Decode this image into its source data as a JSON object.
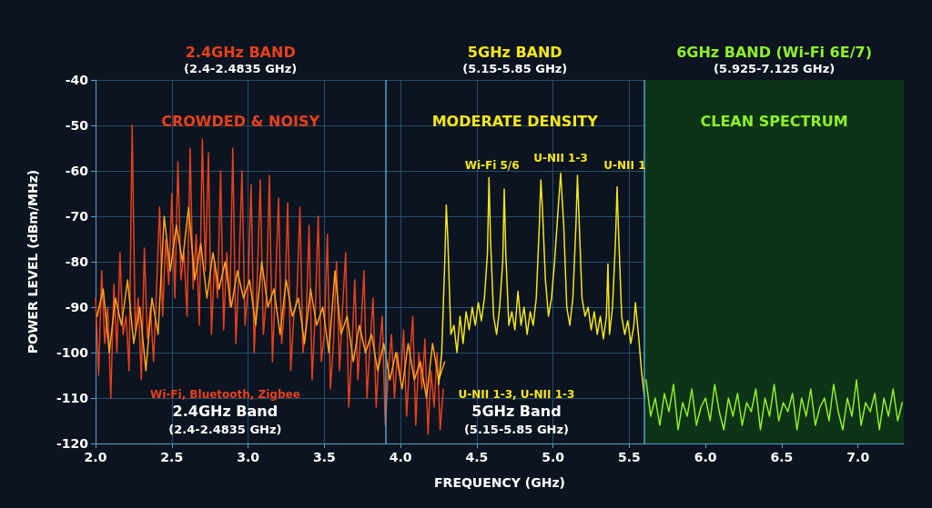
{
  "chart_data": {
    "type": "line",
    "xlabel": "FREQUENCY (GHz)",
    "ylabel": "POWER LEVEL (dBm/MHz)",
    "xlim": [
      2.0,
      7.3
    ],
    "xticks": [
      {
        "value": 2,
        "label": "2.0"
      },
      2.5,
      {
        "value": 3,
        "label": "3.0"
      },
      3.5,
      {
        "value": 4,
        "label": "4.0"
      },
      4.5,
      {
        "value": 5,
        "label": "5.0"
      },
      5.5,
      {
        "value": 6,
        "label": "6.0"
      },
      6.5,
      {
        "value": 7,
        "label": "7.0"
      }
    ],
    "ylim": [
      -120,
      -40
    ],
    "yticks": [
      -120,
      -110,
      -100,
      -90,
      -80,
      -70,
      -60,
      -50,
      -40
    ],
    "grid": true,
    "marker": "none",
    "series": [
      {
        "color": "#e8401c",
        "x": [
          2.0,
          2.02,
          2.04,
          2.06,
          2.08,
          2.1,
          2.12,
          2.14,
          2.16,
          2.18,
          2.2,
          2.22,
          2.24,
          2.26,
          2.28,
          2.3,
          2.32,
          2.34,
          2.36,
          2.38,
          2.4,
          2.42,
          2.44,
          2.46,
          2.48,
          2.5,
          2.52,
          2.54,
          2.56,
          2.58,
          2.6,
          2.62,
          2.64,
          2.66,
          2.68,
          2.7,
          2.72,
          2.74,
          2.76,
          2.78,
          2.8,
          2.82,
          2.84,
          2.86,
          2.88,
          2.9,
          2.92,
          2.94,
          2.96,
          2.98,
          3.0,
          3.02,
          3.04,
          3.06,
          3.08,
          3.1,
          3.12,
          3.14,
          3.16,
          3.18,
          3.2,
          3.22,
          3.24,
          3.26,
          3.28,
          3.3,
          3.32,
          3.34,
          3.36,
          3.38,
          3.4,
          3.42,
          3.44,
          3.46,
          3.48,
          3.5,
          3.52,
          3.54,
          3.56,
          3.58,
          3.6,
          3.62,
          3.64,
          3.66,
          3.68,
          3.7,
          3.72,
          3.74,
          3.76,
          3.78,
          3.8,
          3.82,
          3.84,
          3.86,
          3.88,
          3.9,
          3.92,
          3.94,
          3.96,
          3.98,
          4.0,
          4.02,
          4.04,
          4.06,
          4.08,
          4.1,
          4.12,
          4.14,
          4.16,
          4.18,
          4.2,
          4.22,
          4.24,
          4.26,
          4.28
        ],
        "values": [
          -88,
          -105,
          -82,
          -98,
          -90,
          -110,
          -85,
          -100,
          -78,
          -96,
          -92,
          -104,
          -50,
          -95,
          -88,
          -106,
          -77,
          -97,
          -90,
          -102,
          -86,
          -68,
          -92,
          -75,
          -85,
          -65,
          -88,
          -58,
          -84,
          -78,
          -92,
          -55,
          -86,
          -74,
          -94,
          -53,
          -82,
          -56,
          -96,
          -80,
          -88,
          -60,
          -95,
          -78,
          -90,
          -55,
          -98,
          -82,
          -60,
          -94,
          -86,
          -63,
          -100,
          -84,
          -62,
          -96,
          -88,
          -61,
          -102,
          -85,
          -66,
          -98,
          -90,
          -67,
          -104,
          -92,
          -88,
          -68,
          -100,
          -94,
          -72,
          -106,
          -92,
          -70,
          -102,
          -96,
          -74,
          -108,
          -98,
          -80,
          -104,
          -90,
          -78,
          -112,
          -100,
          -84,
          -106,
          -95,
          -82,
          -110,
          -98,
          -88,
          -112,
          -100,
          -92,
          -116,
          -104,
          -96,
          -110,
          -100,
          -106,
          -95,
          -114,
          -102,
          -92,
          -116,
          -100,
          -108,
          -97,
          -118,
          -104,
          -112,
          -100,
          -117,
          -108
        ]
      },
      {
        "color": "#ffa41c",
        "x": [
          2.01,
          2.05,
          2.09,
          2.13,
          2.17,
          2.21,
          2.25,
          2.29,
          2.33,
          2.37,
          2.41,
          2.45,
          2.49,
          2.53,
          2.57,
          2.61,
          2.65,
          2.69,
          2.73,
          2.77,
          2.81,
          2.85,
          2.89,
          2.93,
          2.97,
          3.01,
          3.05,
          3.09,
          3.13,
          3.17,
          3.21,
          3.25,
          3.29,
          3.33,
          3.37,
          3.41,
          3.45,
          3.49,
          3.53,
          3.57,
          3.61,
          3.65,
          3.69,
          3.73,
          3.77,
          3.81,
          3.85,
          3.89,
          3.93,
          3.97,
          4.01,
          4.05,
          4.09,
          4.13,
          4.17,
          4.21,
          4.25,
          4.29
        ],
        "values": [
          -92,
          -86,
          -100,
          -88,
          -94,
          -84,
          -98,
          -90,
          -104,
          -88,
          -96,
          -70,
          -82,
          -72,
          -80,
          -68,
          -84,
          -76,
          -88,
          -78,
          -86,
          -80,
          -90,
          -82,
          -88,
          -84,
          -94,
          -80,
          -90,
          -86,
          -96,
          -84,
          -92,
          -88,
          -98,
          -86,
          -94,
          -90,
          -100,
          -82,
          -96,
          -92,
          -102,
          -94,
          -100,
          -96,
          -104,
          -98,
          -106,
          -100,
          -108,
          -98,
          -106,
          -102,
          -110,
          -98,
          -106,
          -102
        ]
      },
      {
        "color": "#f5e61a",
        "x": [
          4.25,
          4.27,
          4.29,
          4.3,
          4.31,
          4.33,
          4.35,
          4.37,
          4.39,
          4.41,
          4.43,
          4.45,
          4.47,
          4.49,
          4.51,
          4.53,
          4.55,
          4.57,
          4.58,
          4.59,
          4.61,
          4.63,
          4.65,
          4.67,
          4.68,
          4.69,
          4.71,
          4.73,
          4.75,
          4.77,
          4.79,
          4.81,
          4.83,
          4.85,
          4.87,
          4.89,
          4.91,
          4.92,
          4.93,
          4.95,
          4.97,
          4.99,
          5.01,
          5.03,
          5.05,
          5.07,
          5.09,
          5.11,
          5.13,
          5.15,
          5.16,
          5.17,
          5.19,
          5.21,
          5.23,
          5.25,
          5.27,
          5.29,
          5.31,
          5.33,
          5.35,
          5.36,
          5.37,
          5.39,
          5.41,
          5.42,
          5.43,
          5.45,
          5.47,
          5.49,
          5.51,
          5.53,
          5.54,
          5.56,
          5.58,
          5.6
        ],
        "values": [
          -107,
          -100,
          -80,
          -67.5,
          -75,
          -96,
          -94,
          -100,
          -92,
          -98,
          -91,
          -95,
          -90,
          -94,
          -89,
          -93,
          -88,
          -78,
          -61.5,
          -75,
          -92,
          -96,
          -90,
          -80,
          -64,
          -78,
          -94,
          -91,
          -95,
          -86.5,
          -94,
          -90,
          -96,
          -91,
          -94,
          -88,
          -72,
          -62,
          -68,
          -84,
          -92,
          -88,
          -80,
          -70,
          -60.5,
          -72,
          -90,
          -94,
          -88,
          -72,
          -61,
          -70,
          -88,
          -92,
          -90,
          -95,
          -91,
          -96,
          -92,
          -97,
          -92,
          -80.5,
          -96,
          -90,
          -75,
          -63.5,
          -74,
          -92,
          -96,
          -93,
          -98,
          -94,
          -89,
          -96,
          -104,
          -110
        ]
      },
      {
        "color": "#8ef02a",
        "x": [
          5.61,
          5.64,
          5.67,
          5.7,
          5.73,
          5.76,
          5.79,
          5.82,
          5.85,
          5.88,
          5.91,
          5.94,
          5.97,
          6.0,
          6.03,
          6.06,
          6.09,
          6.12,
          6.15,
          6.18,
          6.21,
          6.24,
          6.27,
          6.3,
          6.33,
          6.36,
          6.39,
          6.42,
          6.45,
          6.48,
          6.51,
          6.54,
          6.57,
          6.6,
          6.63,
          6.66,
          6.69,
          6.72,
          6.75,
          6.78,
          6.81,
          6.84,
          6.87,
          6.9,
          6.93,
          6.96,
          6.99,
          7.02,
          7.05,
          7.08,
          7.11,
          7.14,
          7.17,
          7.2,
          7.23,
          7.26,
          7.29
        ],
        "values": [
          -106,
          -114,
          -110,
          -116,
          -109,
          -113,
          -107,
          -117,
          -111,
          -114,
          -108,
          -116,
          -112,
          -110,
          -115,
          -107,
          -113,
          -117,
          -110,
          -114,
          -109,
          -116,
          -111,
          -113,
          -108,
          -117,
          -110,
          -114,
          -107,
          -115,
          -111,
          -113,
          -109,
          -117,
          -110,
          -114,
          -108,
          -116,
          -112,
          -110,
          -115,
          -107,
          -113,
          -117,
          -110,
          -114,
          -106,
          -116,
          -111,
          -113,
          -109,
          -117,
          -110,
          -114,
          -108,
          -115,
          -111
        ]
      }
    ],
    "bands": [
      {
        "axis": "x",
        "from": 5.6,
        "to": 7.3,
        "color": "#0e3418"
      }
    ],
    "ref_lines": [
      {
        "axis": "x",
        "value": 3.9,
        "color": "#4fa3c7"
      },
      {
        "axis": "x",
        "value": 5.6,
        "color": "#4fa3c7"
      }
    ],
    "annotations": [
      "2.4GHz BAND\n(2.4-2.4835 GHz)",
      "5GHz BAND\n(5.15-5.85 GHz)",
      "6GHz BAND (Wi-Fi 6E/7)\n(5.925-7.125 GHz)",
      "CROWDED & NOISY",
      "MODERATE DENSITY",
      "CLEAN SPECTRUM",
      "Wi-Fi 5/6",
      "U-NII 1-3",
      "U-NII 1",
      "Wi-Fi, Bluetooth, Zigbee\n2.4GHz Band\n(2.4-2.4835 GHz)",
      "U-NII 1-3, U-NII 1-3\n5GHz Band\n(5.15-5.85 GHz)"
    ]
  }
}
